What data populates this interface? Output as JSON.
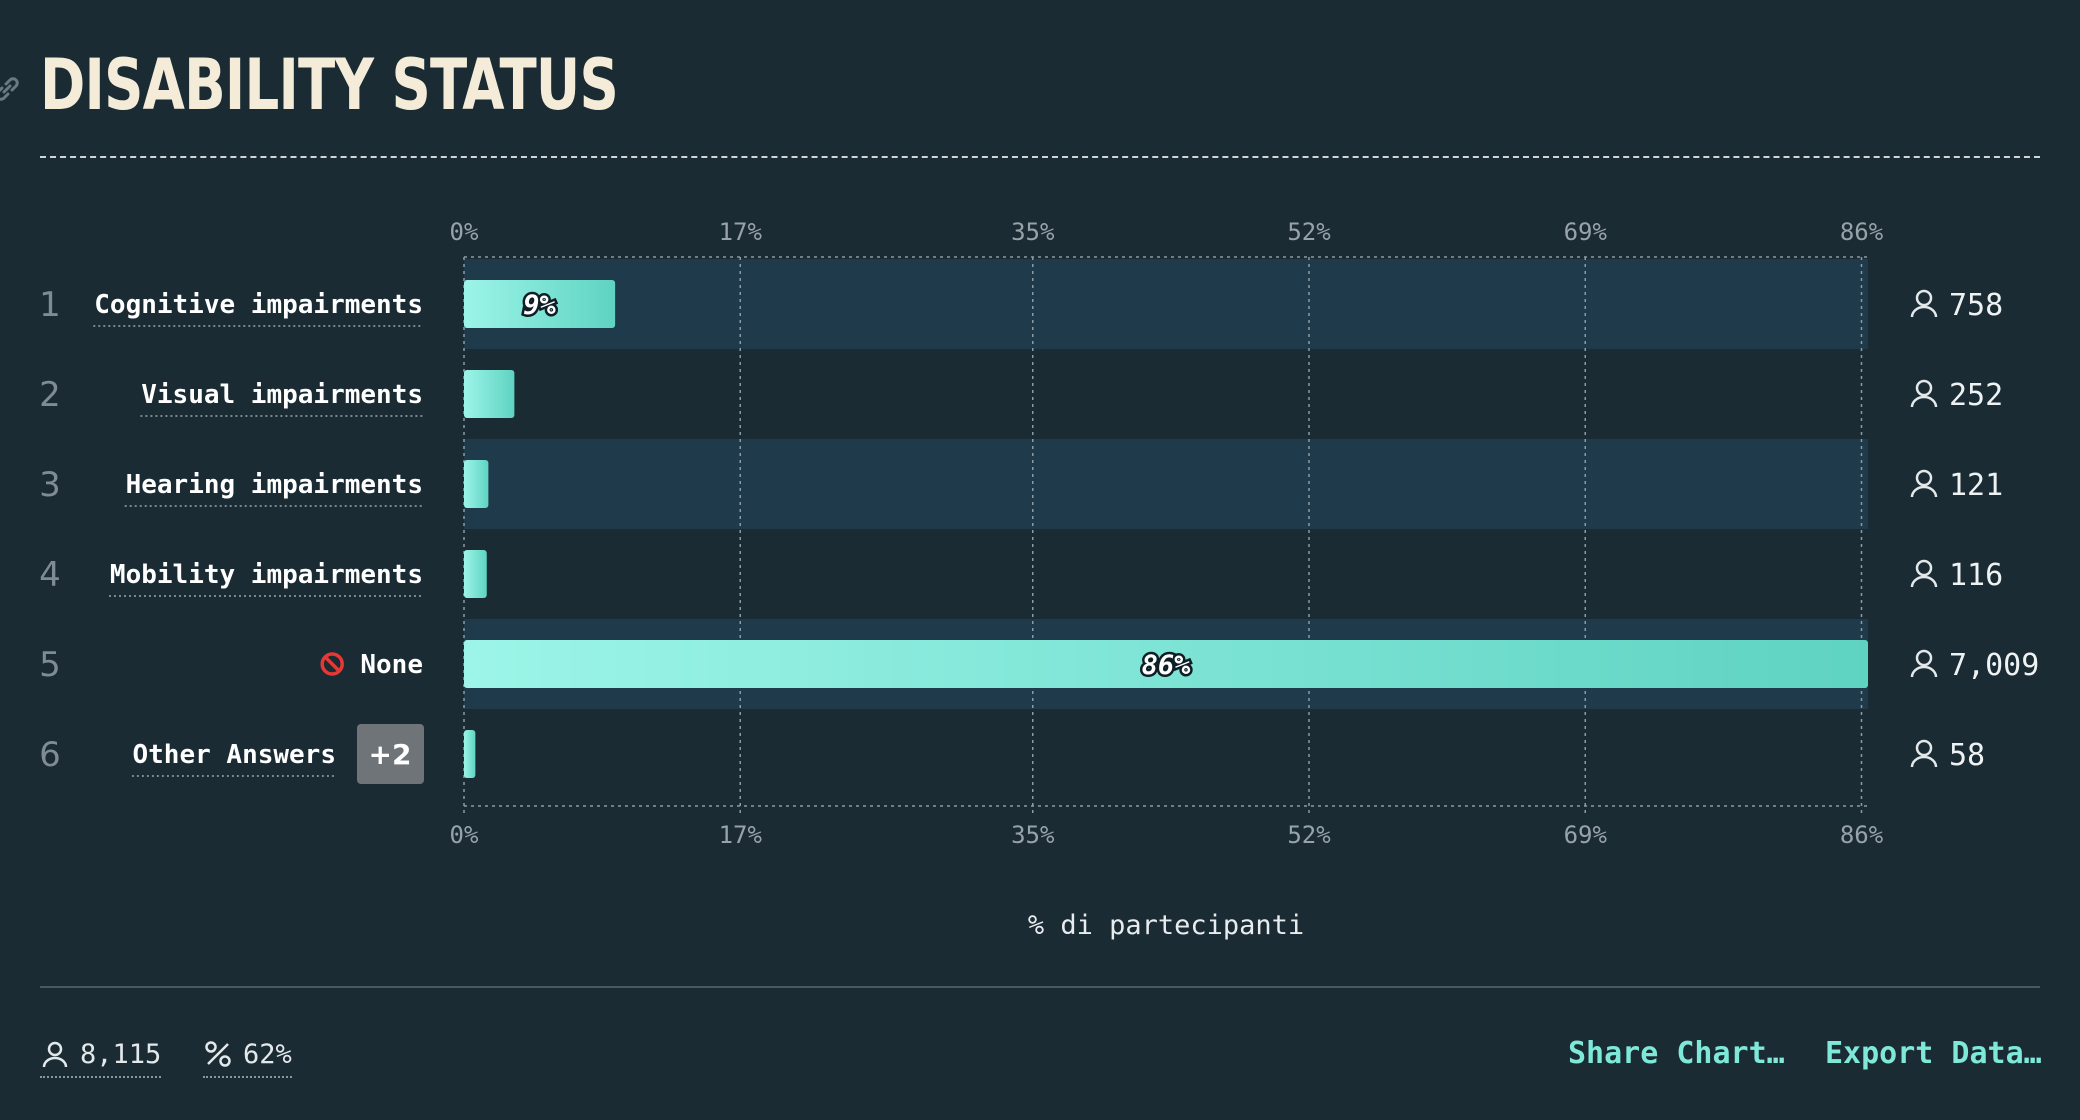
{
  "header": {
    "title": "DISABILITY STATUS"
  },
  "chart_data": {
    "type": "bar",
    "orientation": "horizontal",
    "categories": [
      "Cognitive impairments",
      "Visual impairments",
      "Hearing impairments",
      "Mobility impairments",
      "None",
      "Other Answers"
    ],
    "ranks": [
      "1",
      "2",
      "3",
      "4",
      "5",
      "6"
    ],
    "values": [
      9.3,
      3.1,
      1.5,
      1.4,
      86.4,
      0.7
    ],
    "counts": [
      "758",
      "252",
      "121",
      "116",
      "7,009",
      "58"
    ],
    "data_labels": [
      "9%",
      "",
      "",
      "",
      "86%",
      ""
    ],
    "other_answers_badge": "+2",
    "none_icon": "no-entry-icon",
    "x_ticks": [
      0,
      17,
      35,
      52,
      69,
      86
    ],
    "x_tick_labels": [
      "0%",
      "17%",
      "35%",
      "52%",
      "69%",
      "86%"
    ],
    "xlim": [
      0,
      86.4
    ],
    "xlabel": "% di partecipanti",
    "grid": true,
    "colors": {
      "bar_start": "#9cf5e8",
      "bar_end": "#5fd3c2",
      "row_band": "#1f3a4a",
      "background": "#1a2b34",
      "title": "#f4ecd8",
      "accent": "#7ee8d9"
    }
  },
  "footer": {
    "respondents": "8,115",
    "percent": "62%",
    "share_label": "Share Chart…",
    "export_label": "Export Data…"
  }
}
